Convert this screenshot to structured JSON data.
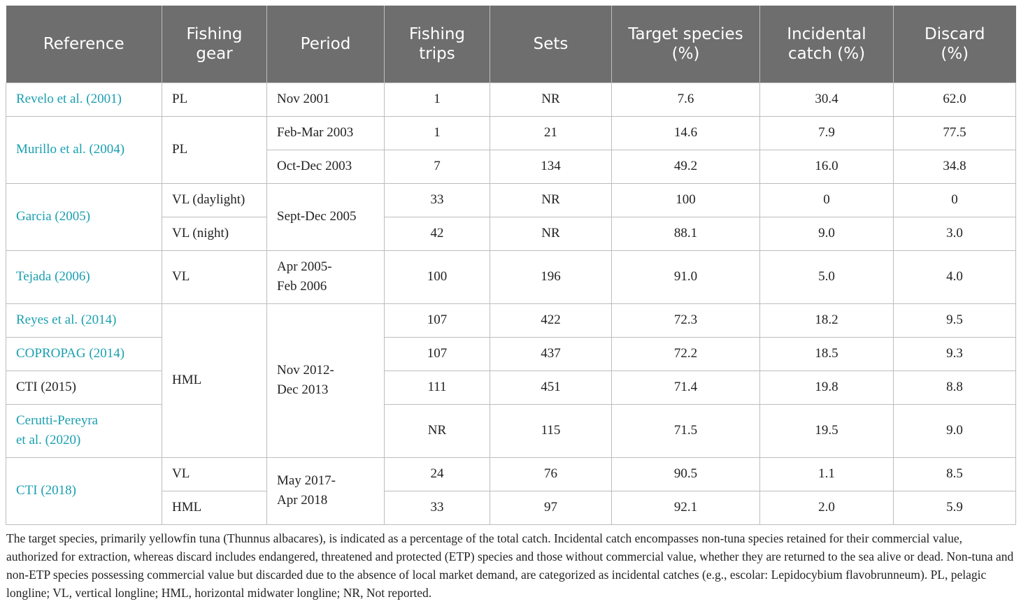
{
  "headers": [
    "Reference",
    "Fishing gear",
    "Period",
    "Fishing trips",
    "Sets",
    "Target species (%)",
    "Incidental catch (%)",
    "Discard (%)"
  ],
  "rows": [
    {
      "ref": "Revelo et al. (2001)",
      "gear": "PL",
      "period": "Nov 2001",
      "trips": "1",
      "sets": "NR",
      "target": "7.6",
      "incidental": "30.4",
      "discard": "62.0"
    },
    {
      "ref": "Murillo et al. (2004)",
      "gear": "PL",
      "period": "Feb-Mar 2003",
      "trips": "1",
      "sets": "21",
      "target": "14.6",
      "incidental": "7.9",
      "discard": "77.5"
    },
    {
      "period": "Oct-Dec 2003",
      "trips": "7",
      "sets": "134",
      "target": "49.2",
      "incidental": "16.0",
      "discard": "34.8"
    },
    {
      "ref": "Garcia (2005)",
      "gear": "VL (daylight)",
      "period": "Sept-Dec 2005",
      "trips": "33",
      "sets": "NR",
      "target": "100",
      "incidental": "0",
      "discard": "0"
    },
    {
      "gear": "VL (night)",
      "trips": "42",
      "sets": "NR",
      "target": "88.1",
      "incidental": "9.0",
      "discard": "3.0"
    },
    {
      "ref": "Tejada (2006)",
      "gear": "VL",
      "period": "Apr 2005-\nFeb 2006",
      "trips": "100",
      "sets": "196",
      "target": "91.0",
      "incidental": "5.0",
      "discard": "4.0"
    },
    {
      "ref": "Reyes et al. (2014)",
      "gear": "HML",
      "period": "Nov 2012-\nDec 2013",
      "trips": "107",
      "sets": "422",
      "target": "72.3",
      "incidental": "18.2",
      "discard": "9.5"
    },
    {
      "ref": "COPROPAG (2014)",
      "trips": "107",
      "sets": "437",
      "target": "72.2",
      "incidental": "18.5",
      "discard": "9.3"
    },
    {
      "ref": "CTI (2015)",
      "trips": "111",
      "sets": "451",
      "target": "71.4",
      "incidental": "19.8",
      "discard": "8.8"
    },
    {
      "ref": "Cerutti-Pereyra\net al. (2020)",
      "trips": "NR",
      "sets": "115",
      "target": "71.5",
      "incidental": "19.5",
      "discard": "9.0"
    },
    {
      "ref": "CTI (2018)",
      "gear": "VL",
      "period": "May 2017-\nApr 2018",
      "trips": "24",
      "sets": "76",
      "target": "90.5",
      "incidental": "1.1",
      "discard": "8.5"
    },
    {
      "gear": "HML",
      "trips": "33",
      "sets": "97",
      "target": "92.1",
      "incidental": "2.0",
      "discard": "5.9"
    }
  ],
  "footnote": "The target species, primarily yellowfin tuna (Thunnus albacares), is indicated as a percentage of the total catch. Incidental catch encompasses non-tuna species retained for their commercial value, authorized for extraction, whereas discard includes endangered, threatened and protected (ETP) species and those without commercial value, whether they are returned to the sea alive or dead. Non-tuna and non-ETP species possessing commercial value but discarded due to the absence of local market demand, are categorized as incidental catches (e.g., escolar: Lepidocybium flavobrunneum). PL, pelagic longline; VL, vertical longline; HML, horizontal midwater longline; NR, Not reported."
}
